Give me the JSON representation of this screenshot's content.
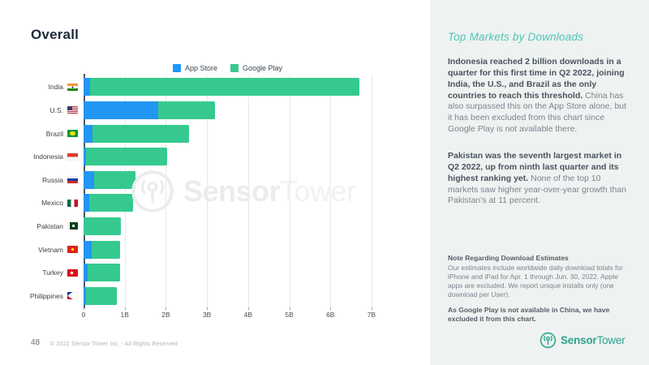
{
  "page": {
    "title": "Overall",
    "page_number": "48",
    "copyright": "© 2022 Sensor Tower Inc. - All Rights Reserved"
  },
  "watermark": {
    "brand_bold": "Sensor",
    "brand_light": "Tower"
  },
  "chart_data": {
    "type": "bar",
    "orientation": "horizontal",
    "stacked": true,
    "title": "",
    "xlabel": "",
    "ylabel": "",
    "xlim": [
      0,
      7
    ],
    "x_unit": "billions of downloads",
    "x_ticks": [
      "0",
      "1B",
      "2B",
      "3B",
      "4B",
      "5B",
      "6B",
      "7B"
    ],
    "grid": true,
    "legend_position": "top",
    "categories": [
      "India",
      "U.S.",
      "Brazil",
      "Indonesia",
      "Russia",
      "Mexico",
      "Pakistan",
      "Vietnam",
      "Turkey",
      "Philippines"
    ],
    "flags": [
      "india",
      "us",
      "brazil",
      "indonesia",
      "russia",
      "mexico",
      "pakistan",
      "vietnam",
      "turkey",
      "philippines"
    ],
    "series": [
      {
        "name": "App Store",
        "color": "#2196F3",
        "values": [
          0.15,
          1.82,
          0.22,
          0.05,
          0.26,
          0.13,
          0,
          0.2,
          0.1,
          0.05
        ]
      },
      {
        "name": "Google Play",
        "color": "#36C98F",
        "values": [
          6.55,
          1.38,
          2.35,
          1.99,
          1.0,
          1.07,
          0.91,
          0.69,
          0.79,
          0.76
        ]
      }
    ],
    "totals": [
      6.7,
      3.2,
      2.57,
      2.04,
      1.26,
      1.2,
      0.91,
      0.89,
      0.89,
      0.81
    ]
  },
  "sidebar": {
    "heading": "Top Markets by Downloads",
    "paragraphs": [
      {
        "bold": "Indonesia reached 2 billion downloads in a quarter for this first time in Q2 2022, joining India, the U.S., and Brazil as the only countries to reach this threshold.",
        "regular": "China has also surpassed this on the App Store alone, but it has been excluded from this chart since Google Play is not available there."
      },
      {
        "bold": "Pakistan was the seventh largest market in Q2 2022, up from ninth last quarter and its highest ranking yet.",
        "regular": "None of the top 10 markets saw higher year-over-year growth than Pakistan's at 11 percent."
      }
    ],
    "note": {
      "heading": "Note Regarding Download Estimates",
      "body": "Our estimates include worldwide daily download totals for iPhone and iPad for Apr. 1 through Jun. 30, 2022. Apple apps are excluded. We report unique installs only (one download per User).",
      "bold_note": "As Google Play is not available in China, we have excluded it from this chart."
    },
    "logo": {
      "brand_bold": "Sensor",
      "brand_light": "Tower"
    }
  },
  "colors": {
    "app_store": "#2196F3",
    "google_play": "#36C98F",
    "accent_teal": "#2EA38F",
    "heading_teal": "#4FC4B7",
    "panel_bg": "#EEF2F1",
    "title_navy": "#1E2B3C"
  }
}
